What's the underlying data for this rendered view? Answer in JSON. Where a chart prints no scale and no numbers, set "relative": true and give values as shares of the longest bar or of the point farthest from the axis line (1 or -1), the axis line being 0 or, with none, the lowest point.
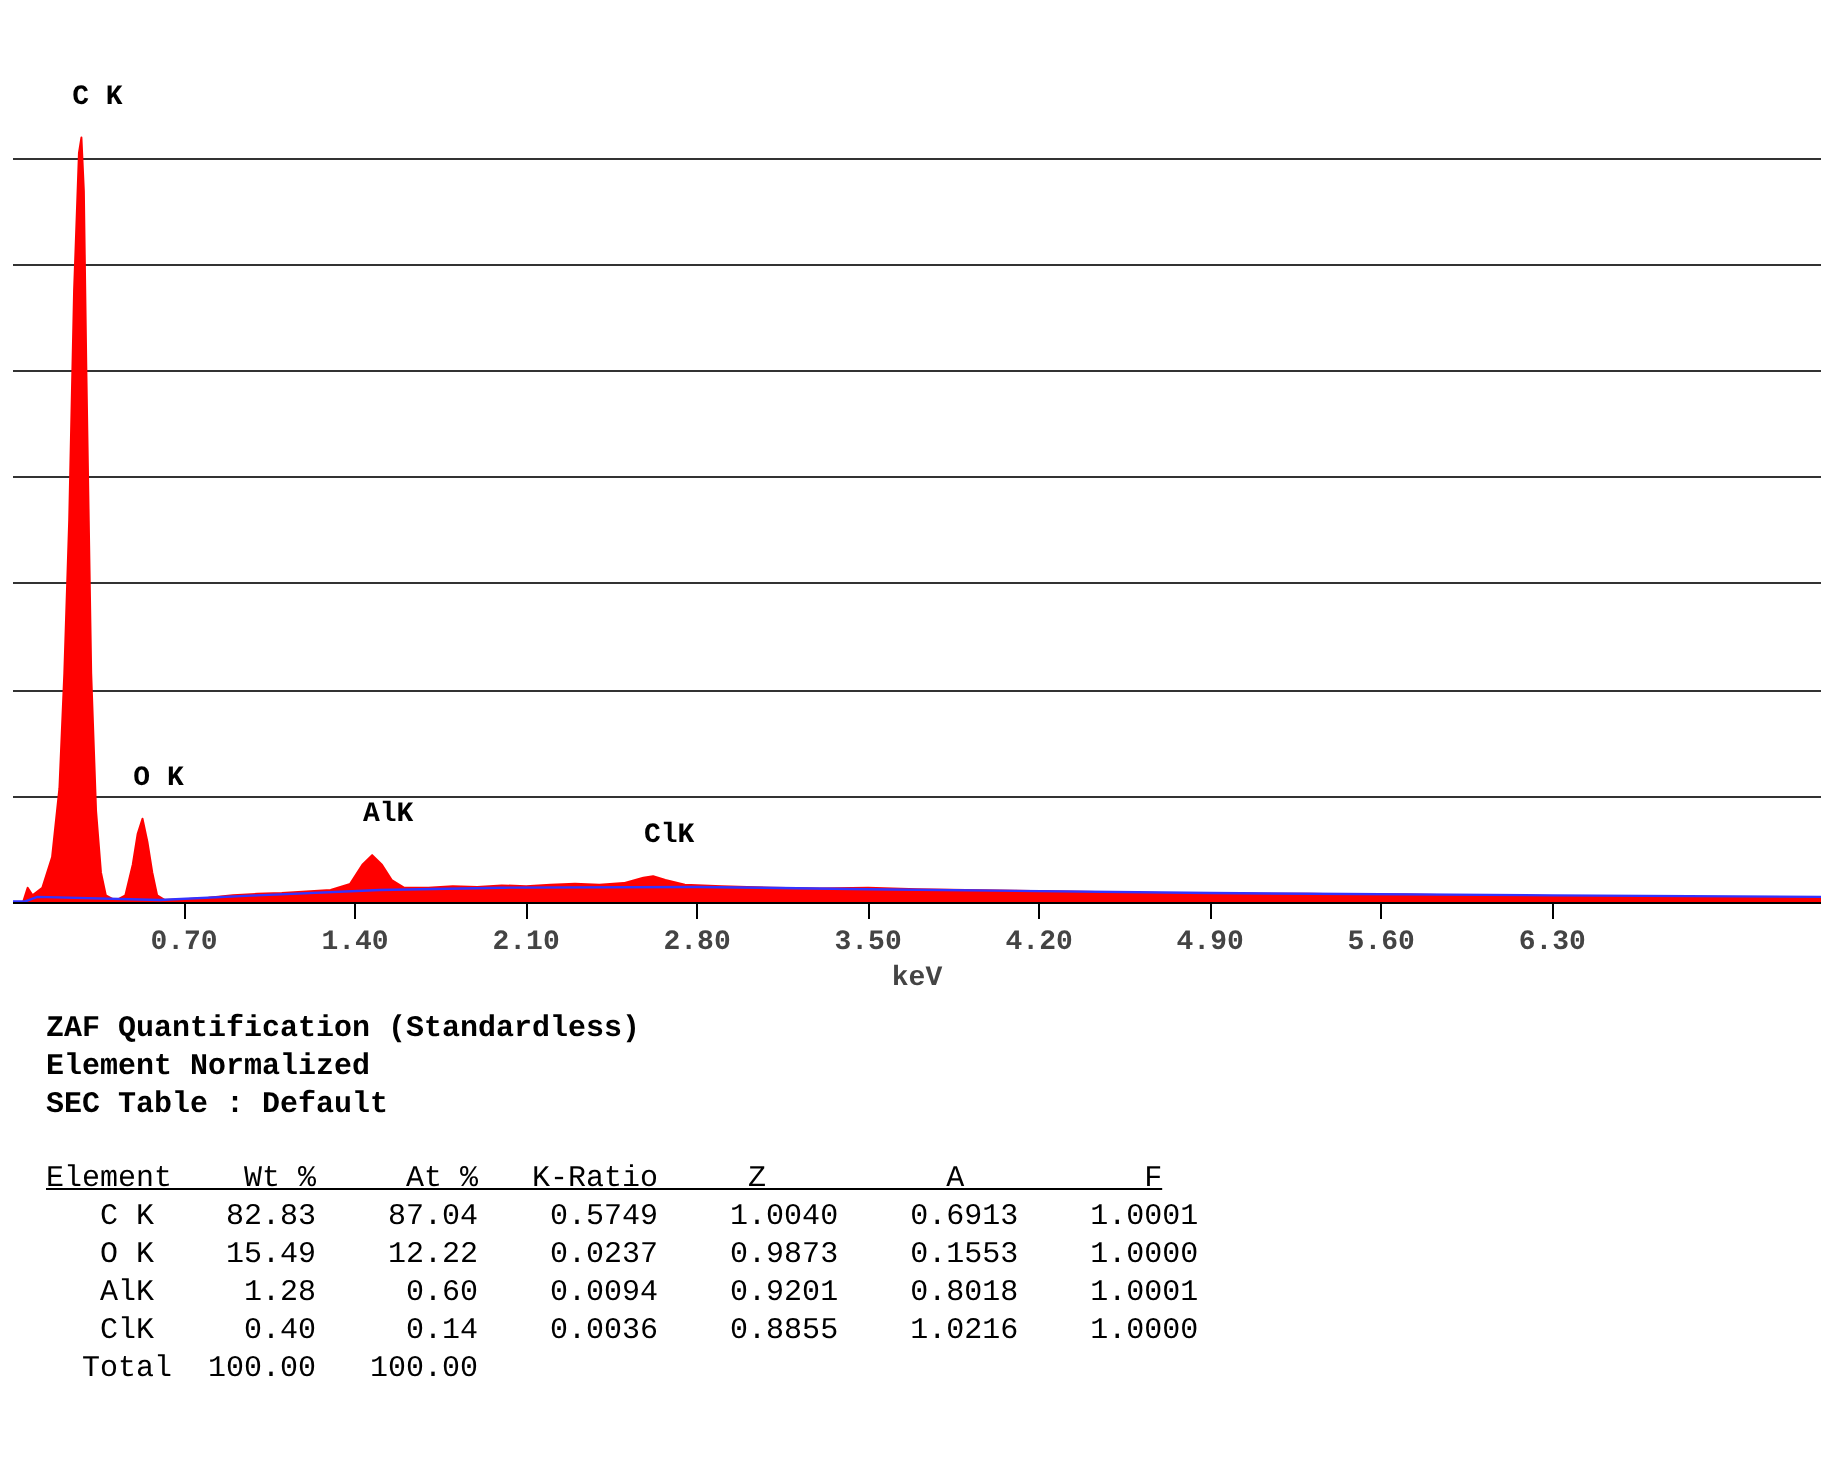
{
  "chart_data": {
    "type": "area",
    "relative": true,
    "xlabel": "keV",
    "xlim": [
      0,
      7.4
    ],
    "xticks": [
      {
        "value": 0.7,
        "label": "0.70"
      },
      {
        "value": 1.4,
        "label": "1.40"
      },
      {
        "value": 2.1,
        "label": "2.10"
      },
      {
        "value": 2.8,
        "label": "2.80"
      },
      {
        "value": 3.5,
        "label": "3.50"
      },
      {
        "value": 4.2,
        "label": "4.20"
      },
      {
        "value": 4.9,
        "label": "4.90"
      },
      {
        "value": 5.6,
        "label": "5.60"
      },
      {
        "value": 6.3,
        "label": "6.30"
      }
    ],
    "grid": "y",
    "series": [
      {
        "color": "#ff0000",
        "x": [
          0.0,
          0.04,
          0.06,
          0.08,
          0.12,
          0.16,
          0.19,
          0.21,
          0.23,
          0.25,
          0.27,
          0.28,
          0.29,
          0.3,
          0.31,
          0.32,
          0.34,
          0.36,
          0.38,
          0.42,
          0.46,
          0.49,
          0.51,
          0.53,
          0.55,
          0.57,
          0.59,
          0.62,
          0.7,
          0.8,
          0.9,
          1.0,
          1.1,
          1.2,
          1.3,
          1.38,
          1.43,
          1.47,
          1.51,
          1.55,
          1.6,
          1.7,
          1.8,
          1.9,
          2.0,
          2.1,
          2.2,
          2.3,
          2.4,
          2.5,
          2.58,
          2.62,
          2.67,
          2.75,
          2.9,
          3.1,
          3.3,
          3.5,
          3.7,
          3.9,
          4.1,
          4.3,
          4.5,
          4.7,
          4.9,
          5.1,
          5.3,
          5.5,
          5.7,
          5.9,
          6.1,
          6.3,
          6.5,
          6.7,
          6.9,
          7.1,
          7.3,
          7.4
        ],
        "values": [
          0.0,
          0.0,
          0.02,
          0.01,
          0.02,
          0.06,
          0.15,
          0.3,
          0.5,
          0.8,
          0.98,
          1.0,
          0.93,
          0.7,
          0.5,
          0.3,
          0.12,
          0.04,
          0.01,
          0.003,
          0.01,
          0.05,
          0.09,
          0.11,
          0.08,
          0.04,
          0.01,
          0.004,
          0.005,
          0.007,
          0.01,
          0.012,
          0.013,
          0.015,
          0.017,
          0.025,
          0.05,
          0.0625,
          0.05,
          0.03,
          0.02,
          0.02,
          0.022,
          0.021,
          0.023,
          0.022,
          0.024,
          0.025,
          0.024,
          0.026,
          0.033,
          0.035,
          0.03,
          0.024,
          0.022,
          0.02,
          0.019,
          0.02,
          0.018,
          0.017,
          0.016,
          0.015,
          0.014,
          0.013,
          0.013,
          0.012,
          0.012,
          0.011,
          0.011,
          0.01,
          0.01,
          0.009,
          0.009,
          0.009,
          0.008,
          0.008,
          0.008,
          0.007
        ]
      },
      {
        "type": "line",
        "color": "#3333ff",
        "x": [
          0.0,
          0.05,
          0.1,
          0.6,
          1.0,
          1.5,
          2.0,
          2.8,
          3.5,
          4.9,
          6.3,
          7.4
        ],
        "values": [
          0.002,
          0.002,
          0.008,
          0.004,
          0.01,
          0.017,
          0.02,
          0.021,
          0.018,
          0.013,
          0.01,
          0.008
        ]
      }
    ],
    "annotations": [
      {
        "text": "C K",
        "x": 0.28,
        "y": 1.0
      },
      {
        "text": "O K",
        "x": 0.53,
        "y": 0.11
      },
      {
        "text": "AlK",
        "x": 1.47,
        "y": 0.0625
      },
      {
        "text": "ClK",
        "x": 2.62,
        "y": 0.035
      },
      "ZAF Quantification (Standardless)",
      "Element Normalized",
      "SEC Table : Default",
      "Element    Wt %     At %   K-Ratio     Z          A          F",
      "   C K    82.83    87.04    0.5749    1.0040    0.6913    1.0001",
      "   O K    15.49    12.22    0.0237    0.9873    0.1553    1.0000",
      "   AlK     1.28     0.60    0.0094    0.9201    0.8018    1.0001",
      "   ClK     0.40     0.14    0.0036    0.8855    1.0216    1.0000",
      "  Total  100.00   100.00"
    ]
  }
}
